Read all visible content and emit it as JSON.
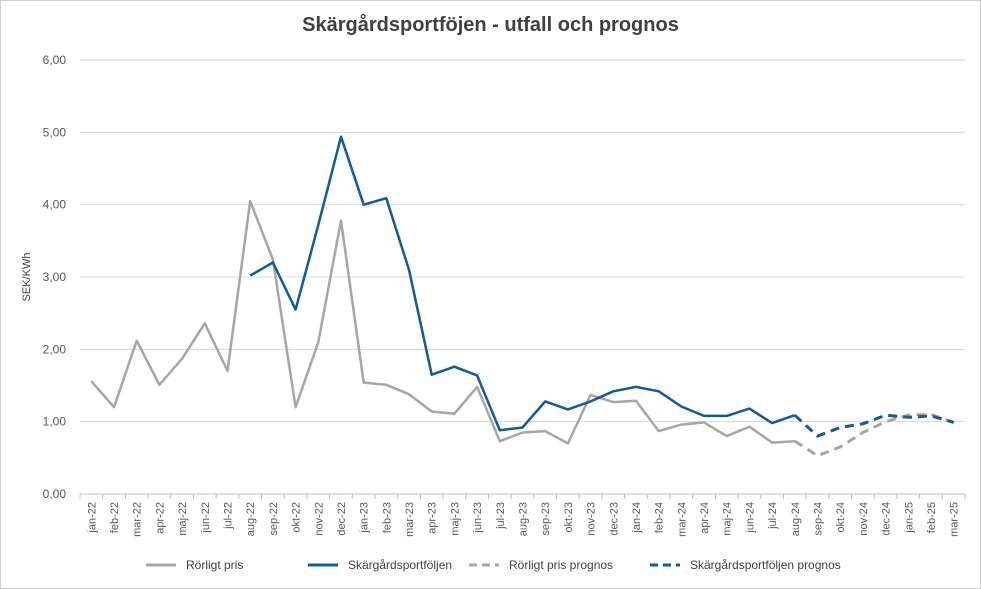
{
  "chart_data": {
    "type": "line",
    "title": "Skärgårdsportföjen - utfall och prognos",
    "ylabel": "SEK/KWh",
    "xlabel": "",
    "ylim": [
      0,
      6
    ],
    "yticks": [
      "0,00",
      "1,00",
      "2,00",
      "3,00",
      "4,00",
      "5,00",
      "6,00"
    ],
    "grid": "horizontal",
    "legend_position": "bottom",
    "categories": [
      "jan-22",
      "feb-22",
      "mar-22",
      "apr-22",
      "maj-22",
      "jun-22",
      "jul-22",
      "aug-22",
      "sep-22",
      "okt-22",
      "nov-22",
      "dec-22",
      "jan-23",
      "feb-23",
      "mar-23",
      "apr-23",
      "maj-23",
      "jun-23",
      "jul-23",
      "aug-23",
      "sep-23",
      "okt-23",
      "nov-23",
      "dec-23",
      "jan-24",
      "feb-24",
      "mar-24",
      "apr-24",
      "maj-24",
      "jun-24",
      "jul-24",
      "aug-24",
      "sep-24",
      "okt-24",
      "nov-24",
      "dec-24",
      "jan-25",
      "feb-25",
      "mar-25"
    ],
    "series": [
      {
        "name": "Rörligt pris",
        "color": "#a6a6a6",
        "dash": "solid",
        "values": [
          1.56,
          1.2,
          2.12,
          1.51,
          1.87,
          2.36,
          1.7,
          4.05,
          3.24,
          1.2,
          2.1,
          3.78,
          1.54,
          1.51,
          1.38,
          1.14,
          1.11,
          1.48,
          0.73,
          0.85,
          0.87,
          0.7,
          1.37,
          1.27,
          1.29,
          0.87,
          0.96,
          0.99,
          0.8,
          0.93,
          0.71,
          0.73,
          null,
          null,
          null,
          null,
          null,
          null,
          null
        ]
      },
      {
        "name": "Skärgårdsportföljen",
        "color": "#0f5b9f",
        "dash": "solid",
        "values": [
          null,
          null,
          null,
          null,
          null,
          null,
          null,
          3.02,
          3.2,
          2.55,
          3.72,
          4.94,
          4.0,
          4.09,
          3.1,
          1.65,
          1.76,
          1.64,
          0.88,
          0.92,
          1.28,
          1.17,
          1.28,
          1.42,
          1.48,
          1.42,
          1.21,
          1.08,
          1.08,
          1.18,
          0.98,
          1.09,
          null,
          null,
          null,
          null,
          null,
          null,
          null
        ]
      },
      {
        "name": "Rörligt pris prognos",
        "color": "#a6a6a6",
        "dash": "dashed",
        "values": [
          null,
          null,
          null,
          null,
          null,
          null,
          null,
          null,
          null,
          null,
          null,
          null,
          null,
          null,
          null,
          null,
          null,
          null,
          null,
          null,
          null,
          null,
          null,
          null,
          null,
          null,
          null,
          null,
          null,
          null,
          null,
          0.73,
          0.53,
          0.65,
          0.85,
          1.0,
          1.09,
          1.1,
          0.99
        ]
      },
      {
        "name": "Skärgårdsportföljen prognos",
        "color": "#0f5b9f",
        "dash": "dashed",
        "values": [
          null,
          null,
          null,
          null,
          null,
          null,
          null,
          null,
          null,
          null,
          null,
          null,
          null,
          null,
          null,
          null,
          null,
          null,
          null,
          null,
          null,
          null,
          null,
          null,
          null,
          null,
          null,
          null,
          null,
          null,
          null,
          1.09,
          0.8,
          0.92,
          0.97,
          1.09,
          1.06,
          1.08,
          0.99
        ]
      }
    ]
  }
}
